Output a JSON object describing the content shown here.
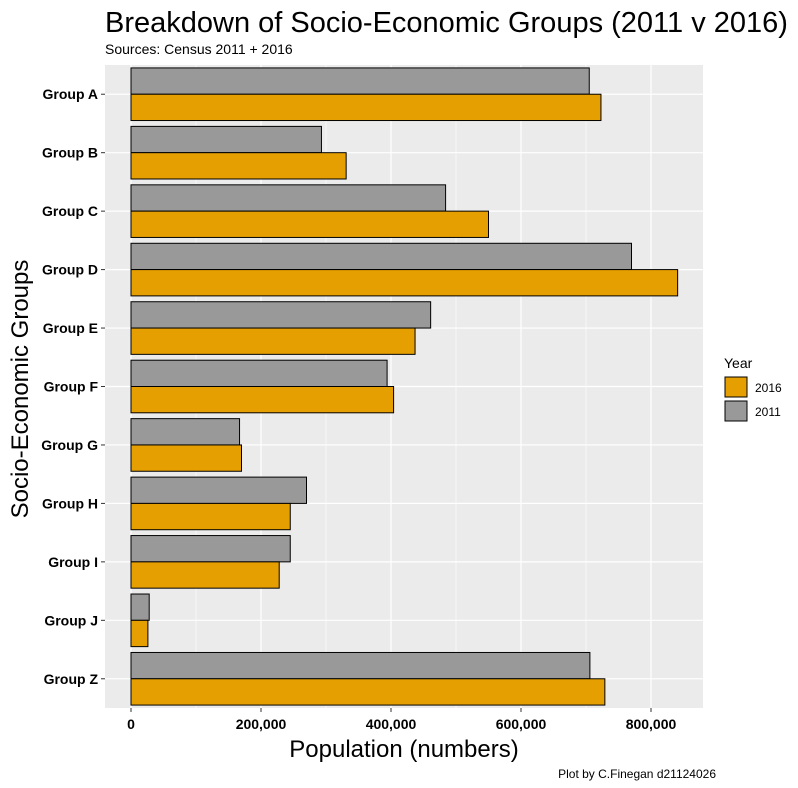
{
  "chart_data": {
    "type": "bar",
    "orientation": "horizontal",
    "title": "Breakdown of Socio-Economic Groups (2011 v 2016)",
    "subtitle": "Sources: Census 2011 + 2016",
    "caption": "Plot by C.Finegan d21124026",
    "xlabel": "Population (numbers)",
    "ylabel": "Socio-Economic Groups",
    "xlim": [
      -40000,
      880000
    ],
    "xticks": [
      0,
      200000,
      400000,
      600000,
      800000
    ],
    "xtick_labels": [
      "0",
      "200,000",
      "400,000",
      "600,000",
      "800,000"
    ],
    "categories": [
      "Group A",
      "Group B",
      "Group C",
      "Group D",
      "Group E",
      "Group F",
      "Group G",
      "Group H",
      "Group I",
      "Group J",
      "Group Z"
    ],
    "series": [
      {
        "name": "2011",
        "color": "#999999",
        "values": [
          705000,
          293000,
          484000,
          770000,
          461000,
          394000,
          167000,
          270000,
          245000,
          28000,
          706000
        ]
      },
      {
        "name": "2016",
        "color": "#E69F00",
        "values": [
          723000,
          331000,
          550000,
          841000,
          437000,
          404000,
          170000,
          245000,
          228000,
          26000,
          729000
        ]
      }
    ],
    "legend": {
      "title": "Year",
      "position": "right",
      "entries": [
        "2016",
        "2011"
      ]
    },
    "grid": true,
    "panel_background": "#EBEBEB"
  }
}
